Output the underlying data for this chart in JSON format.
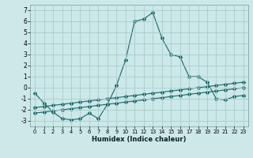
{
  "xlabel": "Humidex (Indice chaleur)",
  "xlim": [
    -0.5,
    23.5
  ],
  "ylim": [
    -3.5,
    7.5
  ],
  "yticks": [
    -3,
    -2,
    -1,
    0,
    1,
    2,
    3,
    4,
    5,
    6,
    7
  ],
  "xticks": [
    0,
    1,
    2,
    3,
    4,
    5,
    6,
    7,
    8,
    9,
    10,
    11,
    12,
    13,
    14,
    15,
    16,
    17,
    18,
    19,
    20,
    21,
    22,
    23
  ],
  "bg_color": "#cce8e8",
  "grid_color": "#aacccc",
  "line_color": "#1a6666",
  "line1_x": [
    0,
    1,
    2,
    3,
    4,
    5,
    6,
    7,
    8,
    9,
    10,
    11,
    12,
    13,
    14,
    15,
    16,
    17,
    18,
    19,
    20,
    21,
    22,
    23
  ],
  "line1_y": [
    -0.5,
    -1.4,
    -2.2,
    -2.8,
    -2.9,
    -2.8,
    -2.3,
    -2.8,
    -1.5,
    0.2,
    2.5,
    6.0,
    6.2,
    6.8,
    4.5,
    3.0,
    2.8,
    1.0,
    1.0,
    0.5,
    -1.0,
    -1.1,
    -0.8,
    -0.7
  ],
  "line2_x": [
    0,
    1,
    2,
    3,
    4,
    5,
    6,
    7,
    8,
    9,
    10,
    11,
    12,
    13,
    14,
    15,
    16,
    17,
    18,
    19,
    20,
    21,
    22,
    23
  ],
  "line2_y": [
    -1.8,
    -1.7,
    -1.6,
    -1.5,
    -1.4,
    -1.3,
    -1.2,
    -1.1,
    -1.0,
    -0.9,
    -0.8,
    -0.7,
    -0.6,
    -0.5,
    -0.4,
    -0.3,
    -0.2,
    -0.1,
    0.0,
    0.1,
    0.2,
    0.3,
    0.4,
    0.5
  ],
  "line3_x": [
    0,
    1,
    2,
    3,
    4,
    5,
    6,
    7,
    8,
    9,
    10,
    11,
    12,
    13,
    14,
    15,
    16,
    17,
    18,
    19,
    20,
    21,
    22,
    23
  ],
  "line3_y": [
    -2.3,
    -2.2,
    -2.1,
    -2.0,
    -1.9,
    -1.8,
    -1.7,
    -1.6,
    -1.5,
    -1.4,
    -1.3,
    -1.2,
    -1.1,
    -1.0,
    -0.9,
    -0.8,
    -0.7,
    -0.6,
    -0.5,
    -0.4,
    -0.3,
    -0.2,
    -0.1,
    0.0
  ]
}
